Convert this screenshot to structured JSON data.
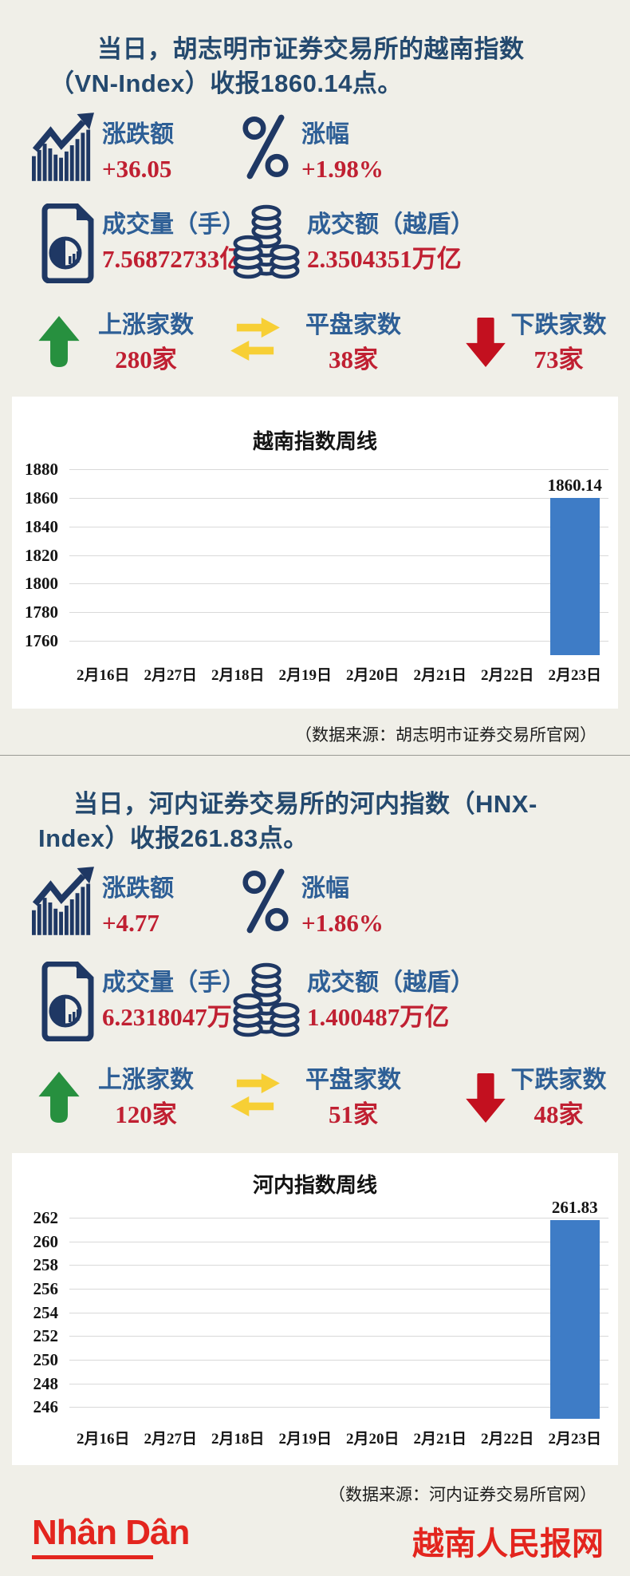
{
  "colors": {
    "background": "#f0efe8",
    "title_navy": "#24496e",
    "label_blue": "#2e5f96",
    "value_red": "#c02032",
    "icon_navy": "#1f3864",
    "up_green": "#27903f",
    "flat_yellow": "#f7cf35",
    "down_red": "#c3101f",
    "bar_blue": "#3e7cc6",
    "footer_red": "#e3251e"
  },
  "section1": {
    "title_line1": "当日，胡志明市证券交易所的越南指数",
    "title_line2": "（VN-Index）收报1860.14点。",
    "stats": [
      {
        "icon": "trend-chart-icon",
        "label": "涨跌额",
        "value": "+36.05"
      },
      {
        "icon": "percent-icon",
        "label": "涨幅",
        "value": "+1.98%"
      },
      {
        "icon": "document-pie-icon",
        "label": "成交量（手）",
        "value": "7.56872733亿"
      },
      {
        "icon": "coin-stack-icon",
        "label": "成交额（越盾）",
        "value": "2.3504351万亿"
      },
      {
        "icon": "up-arrow-icon",
        "label": "上涨家数",
        "value": "280家"
      },
      {
        "icon": "swap-arrows-icon",
        "label": "平盘家数",
        "value": "38家"
      },
      {
        "icon": "down-arrow-icon",
        "label": "下跌家数",
        "value": "73家"
      }
    ],
    "source": "（数据来源：胡志明市证券交易所官网）"
  },
  "section2": {
    "title_line1": "当日，河内证券交易所的河内指数（HNX-",
    "title_line2": "Index）收报261.83点。",
    "stats": [
      {
        "icon": "trend-chart-icon",
        "label": "涨跌额",
        "value": "+4.77"
      },
      {
        "icon": "percent-icon",
        "label": "涨幅",
        "value": "+1.86%"
      },
      {
        "icon": "document-pie-icon",
        "label": "成交量（手）",
        "value": "6.2318047万"
      },
      {
        "icon": "coin-stack-icon",
        "label": "成交额（越盾）",
        "value": "1.400487万亿"
      },
      {
        "icon": "up-arrow-icon",
        "label": "上涨家数",
        "value": "120家"
      },
      {
        "icon": "swap-arrows-icon",
        "label": "平盘家数",
        "value": "51家"
      },
      {
        "icon": "down-arrow-icon",
        "label": "下跌家数",
        "value": "48家"
      }
    ],
    "source": "（数据来源：河内证券交易所官网）"
  },
  "chart_data": [
    {
      "type": "bar",
      "title": "越南指数周线",
      "categories": [
        "2月16日",
        "2月27日",
        "2月18日",
        "2月19日",
        "2月20日",
        "2月21日",
        "2月22日",
        "2月23日"
      ],
      "values": [
        null,
        null,
        null,
        null,
        null,
        null,
        null,
        1860.14
      ],
      "bar_labels": [
        null,
        null,
        null,
        null,
        null,
        null,
        null,
        "1860.14"
      ],
      "yticks": [
        1880,
        1860,
        1840,
        1820,
        1800,
        1780,
        1760
      ],
      "ylim": [
        1750,
        1880
      ],
      "grid": true,
      "legend": "none",
      "bar_color": "#3e7cc6"
    },
    {
      "type": "bar",
      "title": "河内指数周线",
      "categories": [
        "2月16日",
        "2月27日",
        "2月18日",
        "2月19日",
        "2月20日",
        "2月21日",
        "2月22日",
        "2月23日"
      ],
      "values": [
        null,
        null,
        null,
        null,
        null,
        null,
        null,
        261.83
      ],
      "bar_labels": [
        null,
        null,
        null,
        null,
        null,
        null,
        null,
        "261.83"
      ],
      "yticks": [
        262,
        260,
        258,
        256,
        254,
        252,
        250,
        248,
        246
      ],
      "ylim": [
        245,
        262
      ],
      "grid": true,
      "legend": "none",
      "bar_color": "#3e7cc6"
    }
  ],
  "footer": {
    "logo_text": "Nhân Dân",
    "site_name": "越南人民报网"
  }
}
